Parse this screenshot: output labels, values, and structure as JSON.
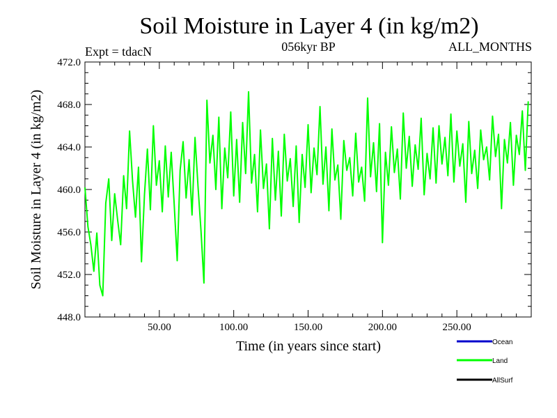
{
  "chart_data": {
    "type": "line",
    "title": "Soil Moisture in Layer 4 (in kg/m2)",
    "subtitle_left": "Expt = tdacN",
    "subtitle_center": "056kyr BP",
    "subtitle_right": "ALL_MONTHS",
    "xlabel": "Time (in years since start)",
    "ylabel": "Soil Moisture in Layer 4 (in kg/m2)",
    "xlim": [
      0,
      300
    ],
    "ylim": [
      448.0,
      472.0
    ],
    "x_ticks": [
      50,
      100,
      150,
      200,
      250
    ],
    "x_tick_labels": [
      "50.00",
      "100.00",
      "150.00",
      "200.00",
      "250.00"
    ],
    "y_ticks": [
      448,
      452,
      456,
      460,
      464,
      468,
      472
    ],
    "y_tick_labels": [
      "448.0",
      "452.0",
      "456.0",
      "460.0",
      "464.0",
      "468.0",
      "472.0"
    ],
    "grid": false,
    "legend_position": "bottom-right",
    "series": [
      {
        "name": "Ocean",
        "color": "#0000cc",
        "x": [],
        "values": []
      },
      {
        "name": "Land",
        "color": "#00ff00",
        "x": [
          0,
          2,
          4,
          6,
          8,
          10,
          12,
          14,
          16,
          18,
          20,
          22,
          24,
          26,
          28,
          30,
          32,
          34,
          36,
          38,
          40,
          42,
          44,
          46,
          48,
          50,
          52,
          54,
          56,
          58,
          60,
          62,
          64,
          66,
          68,
          70,
          72,
          74,
          76,
          78,
          80,
          82,
          84,
          86,
          88,
          90,
          92,
          94,
          96,
          98,
          100,
          102,
          104,
          106,
          108,
          110,
          112,
          114,
          116,
          118,
          120,
          122,
          124,
          126,
          128,
          130,
          132,
          134,
          136,
          138,
          140,
          142,
          144,
          146,
          148,
          150,
          152,
          154,
          156,
          158,
          160,
          162,
          164,
          166,
          168,
          170,
          172,
          174,
          176,
          178,
          180,
          182,
          184,
          186,
          188,
          190,
          192,
          194,
          196,
          198,
          200,
          202,
          204,
          206,
          208,
          210,
          212,
          214,
          216,
          218,
          220,
          222,
          224,
          226,
          228,
          230,
          232,
          234,
          236,
          238,
          240,
          242,
          244,
          246,
          248,
          250,
          252,
          254,
          256,
          258,
          260,
          262,
          264,
          266,
          268,
          270,
          272,
          274,
          276,
          278,
          280,
          282,
          284,
          286,
          288,
          290,
          292,
          294,
          296,
          298
        ],
        "values": [
          460.2,
          456.5,
          454.8,
          452.3,
          455.9,
          451.0,
          450.0,
          458.7,
          461.0,
          455.2,
          459.6,
          457.1,
          454.8,
          461.3,
          458.2,
          465.5,
          460.8,
          457.4,
          462.1,
          453.2,
          459.5,
          463.8,
          458.1,
          466.0,
          460.4,
          462.7,
          457.9,
          464.1,
          459.3,
          463.5,
          458.6,
          453.3,
          461.8,
          464.5,
          459.2,
          462.8,
          457.6,
          464.9,
          460.3,
          456.1,
          451.2,
          468.4,
          462.5,
          465.1,
          460.0,
          466.8,
          458.2,
          463.9,
          461.1,
          467.3,
          459.4,
          464.7,
          458.8,
          466.3,
          461.5,
          469.2,
          460.6,
          463.3,
          457.9,
          465.6,
          460.1,
          462.4,
          456.3,
          464.8,
          459.0,
          463.6,
          457.5,
          465.2,
          460.8,
          462.9,
          458.4,
          464.1,
          456.9,
          463.3,
          460.2,
          466.1,
          459.7,
          463.9,
          461.4,
          467.8,
          460.5,
          464.0,
          458.0,
          465.7,
          460.9,
          462.3,
          457.2,
          464.6,
          461.8,
          463.0,
          459.4,
          465.3,
          460.7,
          462.1,
          458.9,
          468.6,
          461.2,
          464.4,
          459.8,
          466.2,
          455.0,
          463.5,
          460.4,
          465.9,
          461.6,
          463.8,
          459.1,
          467.2,
          462.0,
          465.0,
          460.3,
          464.2,
          461.9,
          466.7,
          459.5,
          463.4,
          461.0,
          465.8,
          460.6,
          466.0,
          462.4,
          464.9,
          461.3,
          467.1,
          460.7,
          465.5,
          462.2,
          464.3,
          458.8,
          466.4,
          461.5,
          463.7,
          460.1,
          465.6,
          462.8,
          464.0,
          460.9,
          466.9,
          463.1,
          465.2,
          458.2,
          464.7,
          462.5,
          466.3,
          460.4,
          465.1,
          463.3,
          467.4,
          461.8,
          468.3
        ]
      },
      {
        "name": "AllSurf",
        "color": "#000000",
        "x": [],
        "values": []
      }
    ]
  }
}
